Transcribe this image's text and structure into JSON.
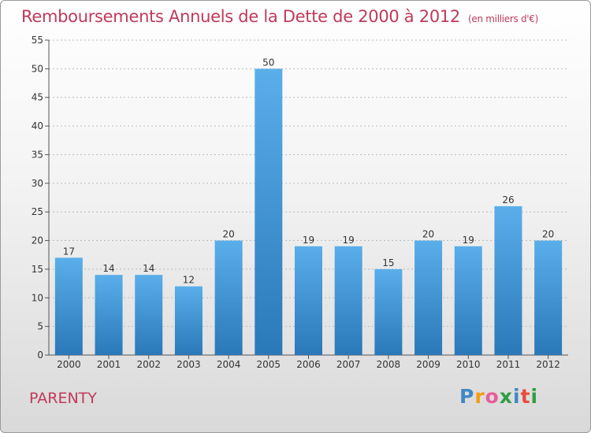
{
  "header": {
    "title": "Remboursements Annuels de la Dette de 2000 à 2012",
    "subtitle": "(en milliers d'€)"
  },
  "commune": "PARENTY",
  "logo": {
    "text": "Proxiti",
    "letters": [
      "P",
      "r",
      "o",
      "x",
      "i",
      "t",
      "i"
    ],
    "colors": [
      "#3f88c5",
      "#f39c12",
      "#e85d9b",
      "#2e9e44",
      "#3f88c5",
      "#e74c3c",
      "#2e9e44"
    ]
  },
  "colors": {
    "title": "#c0395a",
    "bar_light": "#5aaeea",
    "bar_dark": "#2a78b8",
    "grid": "#bbbbbb"
  },
  "chart_data": {
    "type": "bar",
    "title": "Remboursements Annuels de la Dette de 2000 à 2012",
    "subtitle": "(en milliers d'€)",
    "xlabel": "",
    "ylabel": "",
    "categories": [
      "2000",
      "2001",
      "2002",
      "2003",
      "2004",
      "2005",
      "2006",
      "2007",
      "2008",
      "2009",
      "2010",
      "2011",
      "2012"
    ],
    "values": [
      17,
      14,
      14,
      12,
      20,
      50,
      19,
      19,
      15,
      20,
      19,
      26,
      20
    ],
    "data_labels": [
      "17",
      "14",
      "14",
      "12",
      "20",
      "50",
      "19",
      "19",
      "15",
      "20",
      "19",
      "26",
      "20"
    ],
    "ylim": [
      0,
      55
    ],
    "yticks": [
      "0",
      "5",
      "10",
      "15",
      "20",
      "25",
      "30",
      "35",
      "40",
      "45",
      "50",
      "55"
    ],
    "grid": true,
    "legend": "none"
  }
}
